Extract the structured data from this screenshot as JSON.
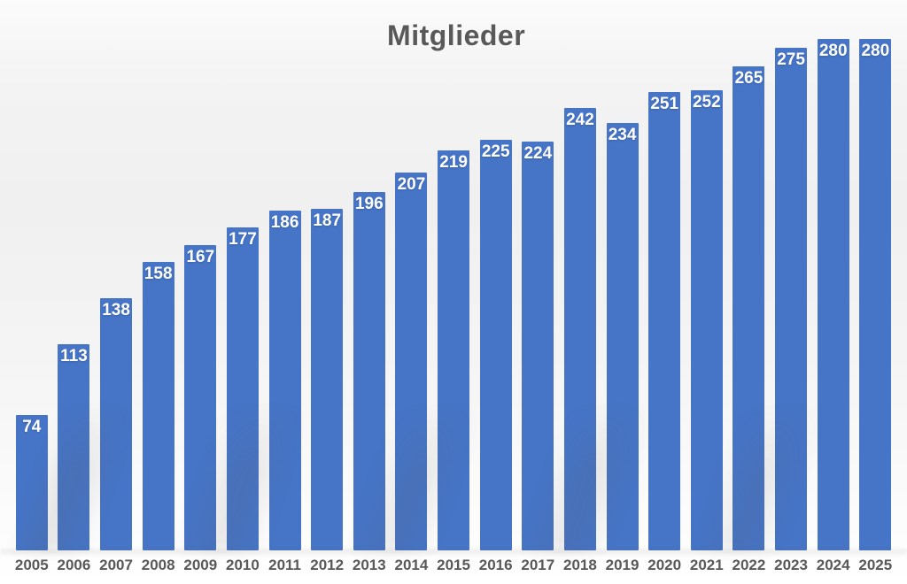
{
  "chart_data": {
    "type": "bar",
    "title": "Mitglieder",
    "categories": [
      "2005",
      "2006",
      "2007",
      "2008",
      "2009",
      "2010",
      "2011",
      "2012",
      "2013",
      "2014",
      "2015",
      "2016",
      "2017",
      "2018",
      "2019",
      "2020",
      "2021",
      "2022",
      "2023",
      "2024",
      "2025"
    ],
    "values": [
      74,
      113,
      138,
      158,
      167,
      177,
      186,
      187,
      196,
      207,
      219,
      225,
      224,
      242,
      234,
      251,
      252,
      265,
      275,
      280,
      280
    ],
    "xlabel": "",
    "ylabel": "",
    "ylim": [
      0,
      280
    ],
    "grid": false,
    "legend": false,
    "data_labels": "inside-end",
    "colors": {
      "bar": "#4674c6",
      "data_label": "#ffffff",
      "title": "#595959",
      "axis_text": "#595959"
    }
  }
}
